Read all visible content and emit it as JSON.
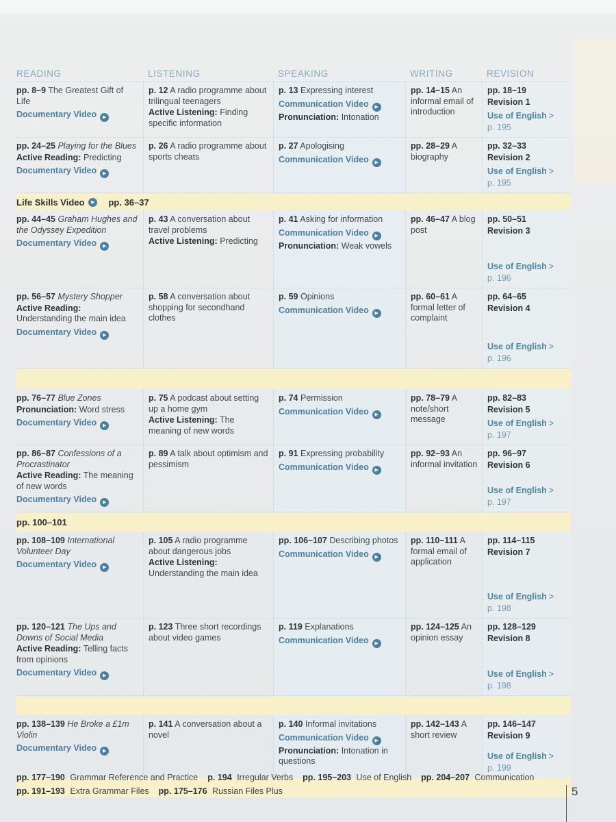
{
  "columns": [
    "READING",
    "LISTENING",
    "SPEAKING",
    "WRITING",
    "REVISION"
  ],
  "colors": {
    "teal_link": "#4a7f9f",
    "header_teal": "#87a9bc",
    "band_yellow": "#f8f0c8"
  },
  "icons": {
    "play": "▶",
    "chevron_right": ">"
  },
  "sections": [
    {
      "type": "row",
      "cells": [
        [
          {
            "seg": [
              [
                "pg",
                "pp. 8–9"
              ],
              [
                "tx",
                "The Greatest Gift of Life"
              ]
            ]
          },
          {
            "video": "Documentary Video"
          }
        ],
        [
          {
            "seg": [
              [
                "pg",
                "p. 12"
              ],
              [
                "tx",
                "A radio programme about trilingual teenagers"
              ]
            ]
          },
          {
            "seg": [
              [
                "lb",
                "Active Listening:"
              ],
              [
                "tx",
                "Finding specific information"
              ]
            ]
          }
        ],
        [
          {
            "seg": [
              [
                "pg",
                "p. 13"
              ],
              [
                "tx",
                "Expressing interest"
              ]
            ]
          },
          {
            "video": "Communication Video"
          },
          {
            "seg": [
              [
                "lb",
                "Pronunciation:"
              ],
              [
                "tx",
                "Intonation"
              ]
            ]
          }
        ],
        [
          {
            "seg": [
              [
                "pg",
                "pp. 14–15"
              ],
              [
                "tx",
                "An informal email of introduction"
              ]
            ]
          }
        ],
        [
          {
            "seg": [
              [
                "pg",
                "pp. 18–19"
              ]
            ]
          },
          {
            "seg": [
              [
                "pg",
                "Revision 1"
              ]
            ]
          },
          {
            "uoe": "Use of English",
            "page": "p. 195"
          }
        ]
      ]
    },
    {
      "type": "row",
      "cells": [
        [
          {
            "seg": [
              [
                "pg",
                "pp. 24–25"
              ],
              [
                "it",
                "Playing for the Blues"
              ]
            ]
          },
          {
            "seg": [
              [
                "lb",
                "Active Reading:"
              ],
              [
                "tx",
                "Predicting"
              ]
            ]
          },
          {
            "video": "Documentary Video"
          }
        ],
        [
          {
            "seg": [
              [
                "pg",
                "p. 26"
              ],
              [
                "tx",
                "A radio programme about sports cheats"
              ]
            ]
          }
        ],
        [
          {
            "seg": [
              [
                "pg",
                "p. 27"
              ],
              [
                "tx",
                "Apologising"
              ]
            ]
          },
          {
            "video": "Communication Video"
          }
        ],
        [
          {
            "seg": [
              [
                "pg",
                "pp. 28–29"
              ],
              [
                "tx",
                "A biography"
              ]
            ]
          }
        ],
        [
          {
            "seg": [
              [
                "pg",
                "pp. 32–33"
              ]
            ]
          },
          {
            "seg": [
              [
                "pg",
                "Revision 2"
              ]
            ]
          },
          {
            "uoe": "Use of English",
            "page": "p. 195"
          }
        ]
      ]
    },
    {
      "type": "band",
      "label": "Life Skills Video",
      "pages": "pp. 36–37"
    },
    {
      "type": "row",
      "cells": [
        [
          {
            "seg": [
              [
                "pg",
                "pp. 44–45"
              ],
              [
                "it",
                "Graham Hughes and the Odyssey Expedition"
              ]
            ]
          },
          {
            "video": "Documentary Video"
          }
        ],
        [
          {
            "seg": [
              [
                "pg",
                "p. 43"
              ],
              [
                "tx",
                "A conversation about travel problems"
              ]
            ]
          },
          {
            "seg": [
              [
                "lb",
                "Active Listening:"
              ],
              [
                "tx",
                "Predicting"
              ]
            ]
          }
        ],
        [
          {
            "seg": [
              [
                "pg",
                "p. 41"
              ],
              [
                "tx",
                "Asking for information"
              ]
            ]
          },
          {
            "video": "Communication Video"
          },
          {
            "seg": [
              [
                "lb",
                "Pronunciation:"
              ],
              [
                "tx",
                "Weak vowels"
              ]
            ]
          }
        ],
        [
          {
            "seg": [
              [
                "pg",
                "pp. 46–47"
              ],
              [
                "tx",
                "A blog post"
              ]
            ]
          }
        ],
        [
          {
            "seg": [
              [
                "pg",
                "pp. 50–51"
              ]
            ]
          },
          {
            "seg": [
              [
                "pg",
                "Revision 3"
              ]
            ]
          },
          {
            "uoe": "Use of English",
            "page": "p. 196"
          }
        ]
      ]
    },
    {
      "type": "row",
      "cells": [
        [
          {
            "seg": [
              [
                "pg",
                "pp. 56–57"
              ],
              [
                "it",
                "Mystery Shopper"
              ]
            ]
          },
          {
            "seg": [
              [
                "lb",
                "Active Reading:"
              ],
              [
                "tx",
                "Understanding the main idea"
              ]
            ]
          },
          {
            "video": "Documentary Video"
          }
        ],
        [
          {
            "seg": [
              [
                "pg",
                "p. 58"
              ],
              [
                "tx",
                "A conversation about shopping for secondhand clothes"
              ]
            ]
          }
        ],
        [
          {
            "seg": [
              [
                "pg",
                "p. 59"
              ],
              [
                "tx",
                "Opinions"
              ]
            ]
          },
          {
            "video": "Communication Video"
          }
        ],
        [
          {
            "seg": [
              [
                "pg",
                "pp. 60–61"
              ],
              [
                "tx",
                "A formal letter of complaint"
              ]
            ]
          }
        ],
        [
          {
            "seg": [
              [
                "pg",
                "pp. 64–65"
              ]
            ]
          },
          {
            "seg": [
              [
                "pg",
                "Revision 4"
              ]
            ]
          },
          {
            "uoe": "Use of English",
            "page": "p. 196"
          }
        ]
      ]
    },
    {
      "type": "band",
      "label": "",
      "pages": ""
    },
    {
      "type": "row",
      "cells": [
        [
          {
            "seg": [
              [
                "pg",
                "pp. 76–77"
              ],
              [
                "it",
                "Blue Zones"
              ]
            ]
          },
          {
            "seg": [
              [
                "lb",
                "Pronunciation:"
              ],
              [
                "tx",
                "Word stress"
              ]
            ]
          },
          {
            "video": "Documentary Video"
          }
        ],
        [
          {
            "seg": [
              [
                "pg",
                "p. 75"
              ],
              [
                "tx",
                "A podcast about setting up a home gym"
              ]
            ]
          },
          {
            "seg": [
              [
                "lb",
                "Active Listening:"
              ],
              [
                "tx",
                "The meaning of new words"
              ]
            ]
          }
        ],
        [
          {
            "seg": [
              [
                "pg",
                "p. 74"
              ],
              [
                "tx",
                "Permission"
              ]
            ]
          },
          {
            "video": "Communication Video"
          }
        ],
        [
          {
            "seg": [
              [
                "pg",
                "pp. 78–79"
              ],
              [
                "tx",
                "A note/short message"
              ]
            ]
          }
        ],
        [
          {
            "seg": [
              [
                "pg",
                "pp. 82–83"
              ]
            ]
          },
          {
            "seg": [
              [
                "pg",
                "Revision 5"
              ]
            ]
          },
          {
            "uoe": "Use of English",
            "page": "p. 197"
          }
        ]
      ]
    },
    {
      "type": "row",
      "cells": [
        [
          {
            "seg": [
              [
                "pg",
                "pp. 86–87"
              ],
              [
                "it",
                "Confessions of a Procrastinator"
              ]
            ]
          },
          {
            "seg": [
              [
                "lb",
                "Active Reading:"
              ],
              [
                "tx",
                "The meaning of new words"
              ]
            ]
          },
          {
            "video": "Documentary Video"
          }
        ],
        [
          {
            "seg": [
              [
                "pg",
                "p. 89"
              ],
              [
                "tx",
                "A talk about optimism and pessimism"
              ]
            ]
          }
        ],
        [
          {
            "seg": [
              [
                "pg",
                "p. 91"
              ],
              [
                "tx",
                "Expressing probability"
              ]
            ]
          },
          {
            "video": "Communication Video"
          }
        ],
        [
          {
            "seg": [
              [
                "pg",
                "pp. 92–93"
              ],
              [
                "tx",
                "An informal invitation"
              ]
            ]
          }
        ],
        [
          {
            "seg": [
              [
                "pg",
                "pp. 96–97"
              ]
            ]
          },
          {
            "seg": [
              [
                "pg",
                "Revision 6"
              ]
            ]
          },
          {
            "uoe": "Use of English",
            "page": "p. 197"
          }
        ]
      ]
    },
    {
      "type": "band",
      "label": "",
      "pages": "pp. 100–101"
    },
    {
      "type": "row",
      "cells": [
        [
          {
            "seg": [
              [
                "pg",
                "pp. 108–109"
              ],
              [
                "it",
                "International Volunteer Day"
              ]
            ]
          },
          {
            "video": "Documentary Video"
          }
        ],
        [
          {
            "seg": [
              [
                "pg",
                "p. 105"
              ],
              [
                "tx",
                "A radio programme about dangerous jobs"
              ]
            ]
          },
          {
            "seg": [
              [
                "lb",
                "Active Listening:"
              ],
              [
                "tx",
                "Understanding the main idea"
              ]
            ]
          }
        ],
        [
          {
            "seg": [
              [
                "pg",
                "pp. 106–107"
              ],
              [
                "tx",
                "Describing photos"
              ]
            ]
          },
          {
            "video": "Communication Video"
          }
        ],
        [
          {
            "seg": [
              [
                "pg",
                "pp. 110–111"
              ],
              [
                "tx",
                "A formal email of application"
              ]
            ]
          }
        ],
        [
          {
            "seg": [
              [
                "pg",
                "pp. 114–115"
              ]
            ]
          },
          {
            "seg": [
              [
                "pg",
                "Revision 7"
              ]
            ]
          },
          {
            "uoe": "Use of English",
            "page": "p. 198"
          }
        ]
      ]
    },
    {
      "type": "row",
      "cells": [
        [
          {
            "seg": [
              [
                "pg",
                "pp. 120–121"
              ],
              [
                "it",
                "The Ups and Downs of Social Media"
              ]
            ]
          },
          {
            "seg": [
              [
                "lb",
                "Active Reading:"
              ],
              [
                "tx",
                "Telling facts from opinions"
              ]
            ]
          },
          {
            "video": "Documentary Video"
          }
        ],
        [
          {
            "seg": [
              [
                "pg",
                "p. 123"
              ],
              [
                "tx",
                "Three short recordings about video games"
              ]
            ]
          }
        ],
        [
          {
            "seg": [
              [
                "pg",
                "p. 119"
              ],
              [
                "tx",
                "Explanations"
              ]
            ]
          },
          {
            "video": "Communication Video"
          }
        ],
        [
          {
            "seg": [
              [
                "pg",
                "pp. 124–125"
              ],
              [
                "tx",
                "An opinion essay"
              ]
            ]
          }
        ],
        [
          {
            "seg": [
              [
                "pg",
                "pp. 128–129"
              ]
            ]
          },
          {
            "seg": [
              [
                "pg",
                "Revision 8"
              ]
            ]
          },
          {
            "uoe": "Use of English",
            "page": "p. 198"
          }
        ]
      ]
    },
    {
      "type": "band",
      "label": "",
      "pages": ""
    },
    {
      "type": "row",
      "no_line": true,
      "cells": [
        [
          {
            "seg": [
              [
                "pg",
                "pp. 138–139"
              ],
              [
                "it",
                "He Broke a £1m Violin"
              ]
            ]
          },
          {
            "video": "Documentary Video"
          }
        ],
        [
          {
            "seg": [
              [
                "pg",
                "p. 141"
              ],
              [
                "tx",
                "A conversation about a novel"
              ]
            ]
          }
        ],
        [
          {
            "seg": [
              [
                "pg",
                "p. 140"
              ],
              [
                "tx",
                "Informal invitations"
              ]
            ]
          },
          {
            "video": "Communication Video"
          },
          {
            "seg": [
              [
                "lb",
                "Pronunciation:"
              ],
              [
                "tx",
                "Intonation in questions"
              ]
            ]
          }
        ],
        [
          {
            "seg": [
              [
                "pg",
                "pp. 142–143"
              ],
              [
                "tx",
                "A short review"
              ]
            ]
          }
        ],
        [
          {
            "seg": [
              [
                "pg",
                "pp. 146–147"
              ]
            ]
          },
          {
            "seg": [
              [
                "pg",
                "Revision 9"
              ]
            ]
          },
          {
            "uoe": "Use of English",
            "page": "p. 199"
          }
        ]
      ]
    },
    {
      "type": "band",
      "label": "",
      "pages": ""
    }
  ],
  "footer": {
    "line1": [
      {
        "pages": "pp. 177–190",
        "title": "Grammar Reference and Practice"
      },
      {
        "pages": "p. 194",
        "title": "Irregular Verbs"
      },
      {
        "pages": "pp. 195–203",
        "title": "Use of English"
      },
      {
        "pages": "pp. 204–207",
        "title": "Communication"
      }
    ],
    "line2": [
      {
        "pages": "pp. 191–193",
        "title": "Extra Grammar Files"
      },
      {
        "pages": "pp. 175–176",
        "title": "Russian Files Plus"
      }
    ]
  },
  "page_number": "5"
}
